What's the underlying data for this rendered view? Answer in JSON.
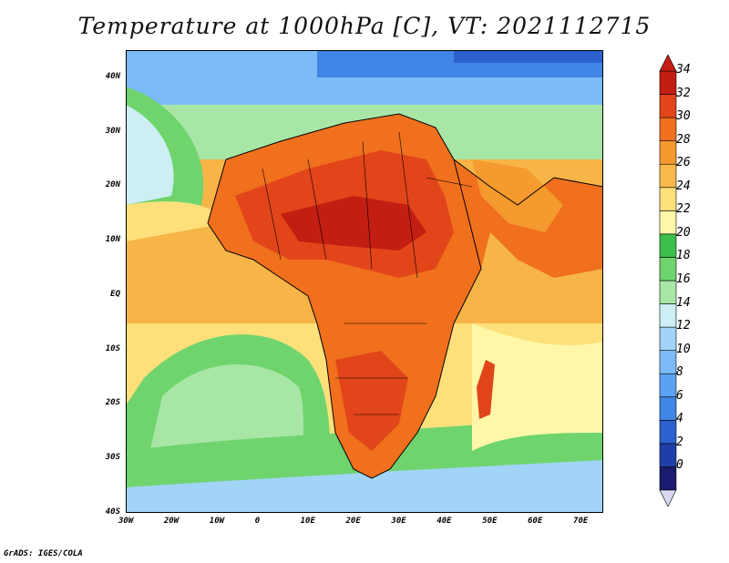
{
  "title": "Temperature at 1000hPa [C], VT: 2021112715",
  "credit": "GrADS: IGES/COLA",
  "map": {
    "lon_range": [
      -30,
      75
    ],
    "lat_range": [
      -40,
      45
    ],
    "lat_labels": [
      "40N",
      "30N",
      "20N",
      "10N",
      "EQ",
      "10S",
      "20S",
      "30S",
      "40S"
    ],
    "lon_labels": [
      "30W",
      "20W",
      "10W",
      "0",
      "10E",
      "20E",
      "30E",
      "40E",
      "50E",
      "60E",
      "70E"
    ]
  },
  "colorbar": {
    "labels": [
      "34",
      "32",
      "30",
      "28",
      "26",
      "24",
      "22",
      "20",
      "18",
      "16",
      "14",
      "12",
      "10",
      "8",
      "6",
      "4",
      "2",
      "0"
    ],
    "colors": [
      "#1a1a6e",
      "#1f3fa8",
      "#2b62cf",
      "#3f86e6",
      "#5aa2f2",
      "#7bbcf6",
      "#a2d4f8",
      "#cdeef2",
      "#a8e6a6",
      "#6fd46e",
      "#3cbf4a",
      "#fff6a8",
      "#fde07a",
      "#f8b94a",
      "#f59a2e",
      "#f0701d",
      "#e2451a",
      "#c41e12"
    ]
  }
}
